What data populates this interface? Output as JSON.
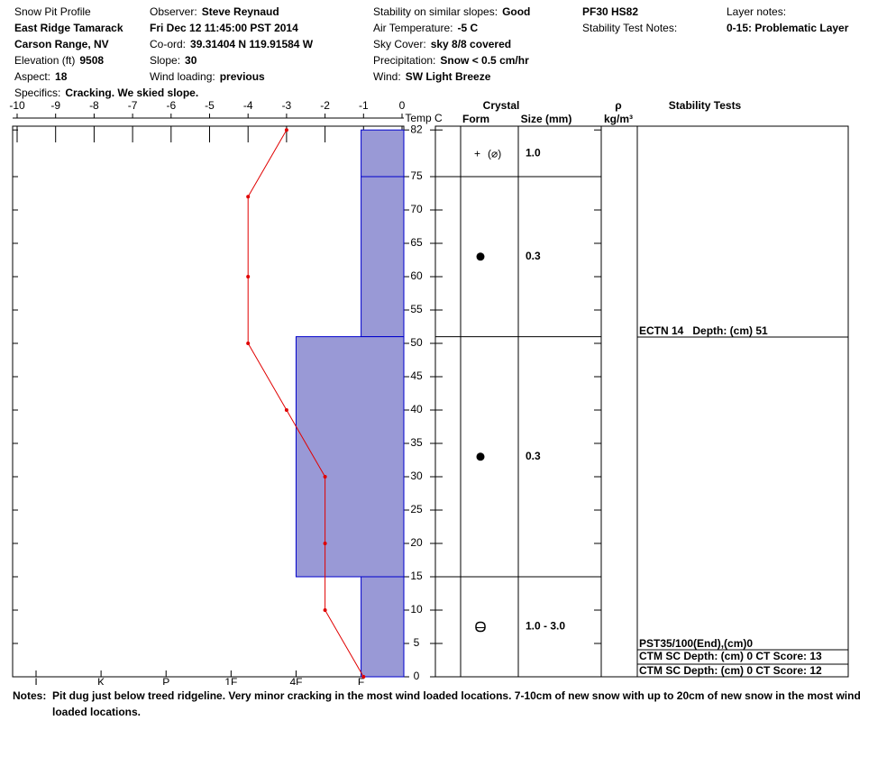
{
  "header": {
    "fields": [
      {
        "label": "Snow Pit Profile"
      },
      {
        "value": "East Ridge Tamarack"
      },
      {
        "value": "Carson Range, NV"
      },
      {
        "label": "Elevation (ft)",
        "value": "9508"
      },
      {
        "label": "Aspect:",
        "value": "18"
      },
      {
        "label": "Specifics:",
        "value": "Cracking. We skied slope."
      },
      {
        "label": "Observer:",
        "value": "Steve Reynaud"
      },
      {
        "value": "Fri Dec 12 11:45:00 PST 2014"
      },
      {
        "label": "Co-ord:",
        "value": "39.31404 N 119.91584 W"
      },
      {
        "label": "Slope:",
        "value": "30"
      },
      {
        "label": "Wind loading:",
        "value": "previous"
      },
      {
        "label": "Stability on similar slopes:",
        "value": "Good"
      },
      {
        "label": "Air Temperature:",
        "value": "-5 C"
      },
      {
        "label": "Sky Cover:",
        "value": "sky 8/8 covered"
      },
      {
        "label": "Precipitation:",
        "value": "Snow < 0.5 cm/hr"
      },
      {
        "label": "Wind:",
        "value": "SW Light Breeze"
      },
      {
        "value": "PF30 HS82"
      },
      {
        "label": "Stability Test Notes:"
      },
      {
        "label": "Layer notes:"
      },
      {
        "value": "0-15: Problematic Layer"
      }
    ]
  },
  "chart_data": {
    "type": "snow-profile",
    "temperature": {
      "axis_label": "Temp C",
      "xlim": [
        -10,
        0
      ],
      "xticks": [
        -10,
        -9,
        -8,
        -7,
        -6,
        -5,
        -4,
        -3,
        -2,
        -1,
        0
      ],
      "depth": [
        82,
        72,
        60,
        50,
        40,
        30,
        20,
        10,
        0
      ],
      "values": [
        -3,
        -4,
        -4,
        -4,
        -3,
        -2,
        -2,
        -2,
        -1
      ],
      "color": "#e00000"
    },
    "depth_axis": {
      "ylim": [
        0,
        82.5
      ],
      "yticks": [
        0,
        5,
        10,
        15,
        20,
        25,
        30,
        35,
        40,
        45,
        50,
        55,
        60,
        65,
        70,
        75,
        82
      ]
    },
    "hardness": {
      "xlim": [
        0.37,
        6
      ],
      "xticks": [
        {
          "value": 6,
          "label": "I"
        },
        {
          "value": 5,
          "label": "K"
        },
        {
          "value": 4,
          "label": "P"
        },
        {
          "value": 3,
          "label": "1F"
        },
        {
          "value": 2,
          "label": "4F"
        },
        {
          "value": 1,
          "label": "F"
        }
      ],
      "color": "#9999d6",
      "edge_color": "#0000cc"
    },
    "layers": [
      {
        "top": 82,
        "bottom": 75,
        "hardness": 1,
        "size": "1.0"
      },
      {
        "top": 75,
        "bottom": 51,
        "hardness": 1,
        "size": "0.3"
      },
      {
        "top": 51,
        "bottom": 15,
        "hardness": 2,
        "size": "0.3"
      },
      {
        "top": 15,
        "bottom": 0,
        "hardness": 1,
        "size": "1.0 - 3.0"
      }
    ],
    "columns": {
      "crystal": "Crystal",
      "form": "Form",
      "size": "Size (mm)",
      "density": "ρ",
      "density_unit": "kg/m³",
      "stability": "Stability Tests"
    },
    "stability_tests": [
      "ECTN 14   Depth: (cm) 51",
      "PST35/100(End),(cm)0",
      "CTM SC Depth: (cm) 0 CT Score: 13",
      "CTM SC Depth: (cm) 0 CT Score: 12"
    ]
  },
  "notes": {
    "label": "Notes:",
    "text": "Pit dug just below treed ridgeline.  Very minor cracking in the most wind loaded locations.  7-10cm of new snow with up to 20cm of new snow in the most wind loaded locations."
  }
}
